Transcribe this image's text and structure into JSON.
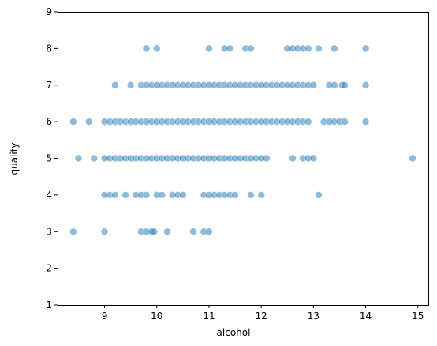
{
  "chart_data": {
    "type": "scatter",
    "title": "",
    "xlabel": "alcohol",
    "ylabel": "quality",
    "xlim": [
      8.1,
      15.2
    ],
    "ylim": [
      1,
      9
    ],
    "xticks": [
      "9",
      "10",
      "11",
      "12",
      "13",
      "14",
      "15"
    ],
    "yticks": [
      "1",
      "2",
      "3",
      "4",
      "5",
      "6",
      "7",
      "8",
      "9"
    ],
    "grid": false,
    "legend": "none",
    "color": "#1f77b4",
    "alpha": 0.5,
    "series": [
      {
        "points": [
          [
            8.4,
            3
          ],
          [
            9.0,
            3
          ],
          [
            9.7,
            3
          ],
          [
            9.8,
            3
          ],
          [
            9.9,
            3
          ],
          [
            9.95,
            3
          ],
          [
            10.2,
            3
          ],
          [
            10.7,
            3
          ],
          [
            10.9,
            3
          ],
          [
            11.0,
            3
          ],
          [
            9.0,
            4
          ],
          [
            9.1,
            4
          ],
          [
            9.2,
            4
          ],
          [
            9.4,
            4
          ],
          [
            9.6,
            4
          ],
          [
            9.7,
            4
          ],
          [
            9.8,
            4
          ],
          [
            10.0,
            4
          ],
          [
            10.1,
            4
          ],
          [
            10.3,
            4
          ],
          [
            10.4,
            4
          ],
          [
            10.5,
            4
          ],
          [
            10.9,
            4
          ],
          [
            11.0,
            4
          ],
          [
            11.1,
            4
          ],
          [
            11.2,
            4
          ],
          [
            11.3,
            4
          ],
          [
            11.4,
            4
          ],
          [
            11.5,
            4
          ],
          [
            11.8,
            4
          ],
          [
            12.0,
            4
          ],
          [
            13.1,
            4
          ],
          [
            8.5,
            5
          ],
          [
            8.8,
            5
          ],
          [
            9.0,
            5
          ],
          [
            9.1,
            5
          ],
          [
            9.2,
            5
          ],
          [
            9.3,
            5
          ],
          [
            9.4,
            5
          ],
          [
            9.5,
            5
          ],
          [
            9.6,
            5
          ],
          [
            9.7,
            5
          ],
          [
            9.8,
            5
          ],
          [
            9.9,
            5
          ],
          [
            10.0,
            5
          ],
          [
            10.1,
            5
          ],
          [
            10.2,
            5
          ],
          [
            10.3,
            5
          ],
          [
            10.4,
            5
          ],
          [
            10.5,
            5
          ],
          [
            10.6,
            5
          ],
          [
            10.7,
            5
          ],
          [
            10.8,
            5
          ],
          [
            10.9,
            5
          ],
          [
            11.0,
            5
          ],
          [
            11.1,
            5
          ],
          [
            11.2,
            5
          ],
          [
            11.3,
            5
          ],
          [
            11.4,
            5
          ],
          [
            11.5,
            5
          ],
          [
            11.6,
            5
          ],
          [
            11.7,
            5
          ],
          [
            11.8,
            5
          ],
          [
            11.9,
            5
          ],
          [
            12.0,
            5
          ],
          [
            12.1,
            5
          ],
          [
            12.6,
            5
          ],
          [
            12.8,
            5
          ],
          [
            12.9,
            5
          ],
          [
            13.0,
            5
          ],
          [
            14.9,
            5
          ],
          [
            8.4,
            6
          ],
          [
            8.7,
            6
          ],
          [
            9.0,
            6
          ],
          [
            9.1,
            6
          ],
          [
            9.2,
            6
          ],
          [
            9.3,
            6
          ],
          [
            9.4,
            6
          ],
          [
            9.5,
            6
          ],
          [
            9.6,
            6
          ],
          [
            9.7,
            6
          ],
          [
            9.8,
            6
          ],
          [
            9.9,
            6
          ],
          [
            10.0,
            6
          ],
          [
            10.1,
            6
          ],
          [
            10.2,
            6
          ],
          [
            10.3,
            6
          ],
          [
            10.4,
            6
          ],
          [
            10.5,
            6
          ],
          [
            10.6,
            6
          ],
          [
            10.7,
            6
          ],
          [
            10.8,
            6
          ],
          [
            10.9,
            6
          ],
          [
            11.0,
            6
          ],
          [
            11.1,
            6
          ],
          [
            11.2,
            6
          ],
          [
            11.3,
            6
          ],
          [
            11.4,
            6
          ],
          [
            11.5,
            6
          ],
          [
            11.6,
            6
          ],
          [
            11.7,
            6
          ],
          [
            11.8,
            6
          ],
          [
            11.9,
            6
          ],
          [
            12.0,
            6
          ],
          [
            12.1,
            6
          ],
          [
            12.2,
            6
          ],
          [
            12.3,
            6
          ],
          [
            12.4,
            6
          ],
          [
            12.5,
            6
          ],
          [
            12.6,
            6
          ],
          [
            12.7,
            6
          ],
          [
            12.8,
            6
          ],
          [
            12.9,
            6
          ],
          [
            13.2,
            6
          ],
          [
            13.3,
            6
          ],
          [
            13.4,
            6
          ],
          [
            13.5,
            6
          ],
          [
            13.6,
            6
          ],
          [
            14.0,
            6
          ],
          [
            9.2,
            7
          ],
          [
            9.5,
            7
          ],
          [
            9.7,
            7
          ],
          [
            9.8,
            7
          ],
          [
            9.9,
            7
          ],
          [
            10.0,
            7
          ],
          [
            10.1,
            7
          ],
          [
            10.2,
            7
          ],
          [
            10.3,
            7
          ],
          [
            10.4,
            7
          ],
          [
            10.5,
            7
          ],
          [
            10.6,
            7
          ],
          [
            10.7,
            7
          ],
          [
            10.8,
            7
          ],
          [
            10.9,
            7
          ],
          [
            11.0,
            7
          ],
          [
            11.1,
            7
          ],
          [
            11.2,
            7
          ],
          [
            11.3,
            7
          ],
          [
            11.4,
            7
          ],
          [
            11.5,
            7
          ],
          [
            11.6,
            7
          ],
          [
            11.7,
            7
          ],
          [
            11.8,
            7
          ],
          [
            11.9,
            7
          ],
          [
            12.0,
            7
          ],
          [
            12.1,
            7
          ],
          [
            12.2,
            7
          ],
          [
            12.3,
            7
          ],
          [
            12.4,
            7
          ],
          [
            12.5,
            7
          ],
          [
            12.6,
            7
          ],
          [
            12.7,
            7
          ],
          [
            12.8,
            7
          ],
          [
            12.9,
            7
          ],
          [
            13.0,
            7
          ],
          [
            13.3,
            7
          ],
          [
            13.4,
            7
          ],
          [
            13.55,
            7
          ],
          [
            13.6,
            7
          ],
          [
            14.0,
            7
          ],
          [
            9.8,
            8
          ],
          [
            10.0,
            8
          ],
          [
            11.0,
            8
          ],
          [
            11.3,
            8
          ],
          [
            11.4,
            8
          ],
          [
            11.7,
            8
          ],
          [
            11.8,
            8
          ],
          [
            12.5,
            8
          ],
          [
            12.6,
            8
          ],
          [
            12.7,
            8
          ],
          [
            12.8,
            8
          ],
          [
            12.9,
            8
          ],
          [
            13.1,
            8
          ],
          [
            13.4,
            8
          ],
          [
            14.0,
            8
          ]
        ]
      }
    ]
  }
}
